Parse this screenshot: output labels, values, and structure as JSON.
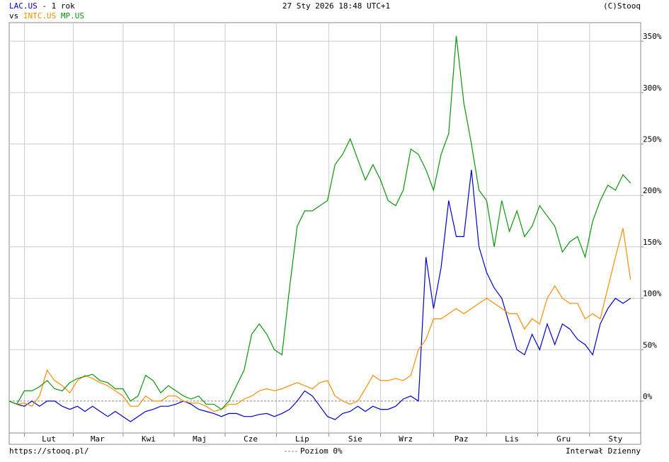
{
  "chart_data": {
    "type": "line",
    "title": "- 1 rok",
    "vs": "vs",
    "date": "27 Sty 2026 18:48 UTC+1",
    "copyright": "(C)Stooq",
    "source": "https://stooq.pl/",
    "zero_line_label": "Poziom 0%",
    "interval": "Interwał Dzienny",
    "xlim": [
      0,
      250
    ],
    "xticks": [
      {
        "value": 15.7,
        "label": "Lut"
      },
      {
        "value": 35,
        "label": "Mar"
      },
      {
        "value": 55.2,
        "label": "Kwi"
      },
      {
        "value": 75.4,
        "label": "Maj"
      },
      {
        "value": 95.6,
        "label": "Cze"
      },
      {
        "value": 116,
        "label": "Lip"
      },
      {
        "value": 137,
        "label": "Sie"
      },
      {
        "value": 157,
        "label": "Wrz"
      },
      {
        "value": 179,
        "label": "Paz"
      },
      {
        "value": 199,
        "label": "Lis"
      },
      {
        "value": 219.5,
        "label": "Gru"
      },
      {
        "value": 240,
        "label": "Sty"
      }
    ],
    "ylim": [
      -31,
      368
    ],
    "yticks": [
      {
        "value": 0,
        "label": "0%"
      },
      {
        "value": 50,
        "label": "50%"
      },
      {
        "value": 100,
        "label": "100%"
      },
      {
        "value": 150,
        "label": "150%"
      },
      {
        "value": 200,
        "label": "200%"
      },
      {
        "value": 250,
        "label": "250%"
      },
      {
        "value": 300,
        "label": "300%"
      },
      {
        "value": 350,
        "label": "350%"
      }
    ],
    "grid": true,
    "x": [
      0,
      3,
      6,
      9,
      12,
      15,
      18,
      21,
      24,
      27,
      30,
      33,
      36,
      39,
      42,
      45,
      48,
      51,
      54,
      57,
      60,
      63,
      66,
      69,
      72,
      75,
      78,
      81,
      84,
      87,
      90,
      93,
      96,
      99,
      102,
      105,
      108,
      111,
      114,
      117,
      120,
      123,
      126,
      129,
      132,
      135,
      138,
      141,
      144,
      147,
      150,
      153,
      156,
      159,
      162,
      165,
      168,
      171,
      174,
      177,
      180,
      183,
      186,
      189,
      192,
      195,
      198,
      201,
      204,
      207,
      210,
      213,
      216,
      219,
      222,
      225,
      228,
      231,
      234,
      237,
      240,
      243,
      246
    ],
    "series": [
      {
        "name": "LAC.US",
        "color": "#0000cc",
        "values": [
          0,
          -3,
          -5,
          0,
          -5,
          0,
          0,
          -5,
          -8,
          -5,
          -10,
          -5,
          -10,
          -15,
          -10,
          -15,
          -20,
          -15,
          -10,
          -8,
          -5,
          -5,
          -3,
          0,
          -3,
          -8,
          -10,
          -12,
          -15,
          -12,
          -12,
          -15,
          -15,
          -13,
          -12,
          -15,
          -12,
          -8,
          0,
          10,
          5,
          -5,
          -15,
          -18,
          -12,
          -10,
          -5,
          -10,
          -5,
          -8,
          -8,
          -5,
          2,
          5,
          0,
          140,
          90,
          130,
          195,
          160,
          160,
          225,
          150,
          125,
          110,
          100,
          75,
          50,
          45,
          65,
          50,
          75,
          55,
          75,
          70,
          60,
          55,
          45,
          75,
          90,
          100,
          95,
          100
        ]
      },
      {
        "name": "INTC.US",
        "color": "#ff8c00",
        "values": [
          0,
          -3,
          -2,
          -5,
          5,
          30,
          20,
          15,
          8,
          20,
          25,
          22,
          18,
          15,
          10,
          5,
          -5,
          -5,
          5,
          0,
          0,
          5,
          5,
          0,
          -2,
          -2,
          -5,
          -10,
          -8,
          -3,
          -3,
          2,
          5,
          10,
          12,
          10,
          12,
          15,
          18,
          15,
          12,
          18,
          20,
          5,
          0,
          -3,
          0,
          12,
          25,
          20,
          20,
          22,
          20,
          25,
          50,
          60,
          80,
          80,
          85,
          90,
          85,
          90,
          95,
          100,
          95,
          90,
          85,
          85,
          70,
          80,
          75,
          100,
          112,
          100,
          95,
          95,
          80,
          85,
          80,
          110,
          140,
          168,
          118
        ]
      },
      {
        "name": "MP.US",
        "color": "#0a960a",
        "values": [
          0,
          -3,
          10,
          10,
          14,
          20,
          12,
          10,
          18,
          22,
          24,
          26,
          20,
          18,
          12,
          12,
          0,
          5,
          25,
          20,
          8,
          15,
          10,
          5,
          2,
          5,
          -3,
          -3,
          -8,
          0,
          15,
          30,
          65,
          75,
          65,
          50,
          45,
          110,
          170,
          185,
          185,
          190,
          195,
          230,
          240,
          255,
          235,
          215,
          230,
          215,
          195,
          190,
          205,
          245,
          240,
          225,
          205,
          240,
          260,
          355,
          290,
          250,
          205,
          195,
          150,
          195,
          165,
          185,
          160,
          170,
          190,
          180,
          170,
          145,
          155,
          160,
          140,
          175,
          195,
          210,
          205,
          220,
          212
        ]
      }
    ]
  }
}
